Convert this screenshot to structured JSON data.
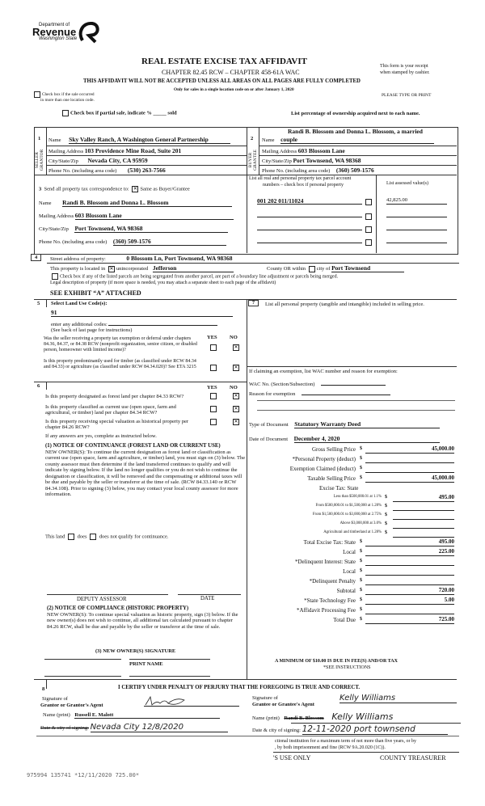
{
  "header": {
    "logo_top": "Department of",
    "logo_main": "Revenue",
    "logo_sub": "Washington State",
    "title": "REAL ESTATE EXCISE TAX AFFIDAVIT",
    "chapter": "CHAPTER 82.45 RCW – CHAPTER 458-61A WAC",
    "warning": "THIS AFFIDAVIT WILL NOT BE ACCEPTED UNLESS ALL AREAS ON ALL PAGES ARE FULLY COMPLETED",
    "only_for": "Only for sales in a single location code on or after January 1, 2020",
    "receipt_note_1": "This form is your receipt",
    "receipt_note_2": "when stamped by cashier.",
    "multi_location_1": "Check box if the sale occurred",
    "multi_location_2": "in more than one location code.",
    "type_print": "PLEASE TYPE OR PRINT",
    "partial_sale": "Check box if partial sale, indicate % _____ sold",
    "ownership_note": "List percentage of ownership acquired next to each name."
  },
  "seller": {
    "num": "1",
    "side_label": "SELLER GRANTOR",
    "name_label": "Name",
    "name": "Sky Valley Ranch, A Washington General Partnership",
    "mail_label": "Mailing Address",
    "mail": "103 Providence Mine Road, Suite 201",
    "city_label": "City/State/Zip",
    "city": "Nevada City, CA 95959",
    "phone_label": "Phone No. (including area code)",
    "phone": "(530) 263-7566"
  },
  "buyer": {
    "num": "2",
    "side_label": "BUYER GRANTEE",
    "name_label": "Name",
    "name_1": "Randi B. Blossom and Donna L. Blossom, a married",
    "name_2": "couple",
    "mail_label": "Mailing Address",
    "mail": "603 Blossom Lane",
    "city_label": "City/State/Zip",
    "city": "Port Townsend, WA 98368",
    "phone_label": "Phone No. (including area code)",
    "phone": "(360) 509-1576"
  },
  "correspondence": {
    "num": "3",
    "label": "Send all property tax correspondence to:",
    "same_label": "Same as Buyer/Grantee",
    "same_checked": true,
    "name_label": "Name",
    "name": "Randi B. Blossom and Donna L. Blossom",
    "mail_label": "Mailing Address",
    "mail": "603 Blossom Lane",
    "city_label": "City/State/Zip",
    "city": "Port Townsend, WA 98368",
    "phone_label": "Phone No. (including area code)",
    "phone": "(360) 509-1576"
  },
  "parcels": {
    "header_1": "List all real and personal property tax parcel account",
    "header_2": "numbers – check box if personal property",
    "assessed_header": "List assessed value(s)",
    "rows": [
      {
        "parcel": "001 202 011/11024",
        "assessed": "42,825.00"
      },
      {
        "parcel": "",
        "assessed": ""
      },
      {
        "parcel": "",
        "assessed": ""
      },
      {
        "parcel": "",
        "assessed": ""
      }
    ]
  },
  "property": {
    "num": "4",
    "street_label": "Street address of property:",
    "street": "0 Blossom Ln, Port Townsend, WA  98368",
    "located_label": "This property is located in",
    "unincorporated_label": "unincorporated",
    "unincorporated_checked": true,
    "county": "Jefferson",
    "county_label": "County OR  within",
    "city_label": "city of",
    "city": "Port Townsend",
    "segregated": "Check box if any of the listed parcels are being segregated from another parcel, are part of a boundary line adjustment or parcels being merged.",
    "legal_label": "Legal description of property (if more space is needed, you may attach a separate sheet to each page of the affidavit)",
    "legal": "SEE EXHIBIT “A” ATTACHED"
  },
  "land_use": {
    "num": "5",
    "label": "Select Land Use Code(s):",
    "code": "91",
    "additional": "enter any additional codes:",
    "see_back": "(See back of last page for instructions)",
    "yes": "YES",
    "no": "NO",
    "q1": "Was the seller receiving a property tax exemption or deferral under chapters 84.36, 84.37, or 84.38 RCW (nonprofit organization, senior citizen, or disabled person, homeowner with limited income)?",
    "q2": "Is this property predominantly used for timber (as classified under RCW 84.34 and 84.33) or agriculture (as classified under RCW 84.34.020)? See ETA 3215"
  },
  "section6": {
    "num": "6",
    "yes": "YES",
    "no": "NO",
    "q1": "Is this property designated as forest land per chapter 84.33 RCW?",
    "q2": "Is this property classified as current use (open space, farm and agricultural, or timber) land per chapter 84.34 RCW?",
    "q3": "Is this property receiving special valuation as historical property per chapter 84.26 RCW?",
    "if_yes": "If any answers are yes, complete as instructed below.",
    "notice1_title": "(1) NOTICE OF CONTINUANCE (FOREST LAND OR CURRENT USE)",
    "notice1_body": "NEW OWNER(S): To continue the current designation as forest land or classification as current use (open space, farm and agriculture, or timber) land, you must sign on (3) below.  The county assessor must then determine if the land transferred continues to qualify and will indicate by signing below.  If the land no longer qualifies or you do not wish to continue the designation or classification, it will be removed and the compensating or additional taxes will be due and payable by the seller or transferor at the time of sale.  (RCW 84.33.140 or RCW 84.34.108). Prior to signing (3) below, you may contact your local county assessor for more information.",
    "this_land": "This land",
    "does": "does",
    "does_not": "does not qualify for continuance.",
    "deputy": "DEPUTY ASSESSOR",
    "date": "DATE",
    "notice2_title": "(2) NOTICE OF COMPLIANCE (HISTORIC PROPERTY)",
    "notice2_body": "NEW OWNER(S):  To continue special valuation as historic property, sign (3) below.  If the new owner(s) does not wish to continue, all additional tax calculated pursuant to chapter 84.26 RCW, shall be due and payable by the seller or transferor at the time of sale.",
    "new_owner_sig": "(3)  NEW OWNER(S) SIGNATURE",
    "print_name": "PRINT NAME"
  },
  "section7": {
    "num": "7",
    "label": "List all personal property (tangible and intangible) included in selling price.",
    "exemption_label": "If claiming an exemption, list WAC number and reason for exemption:",
    "wac_label": "WAC No. (Section/Subsection)",
    "reason_label": "Reason for exemption",
    "doc_type_label": "Type of Document",
    "doc_type": "Statutory Warranty Deed",
    "doc_date_label": "Date of Document",
    "doc_date": "December 4, 2020"
  },
  "tax_rows": [
    {
      "label": "Gross Selling Price",
      "value": "45,000.00"
    },
    {
      "label": "*Personal Property (deduct)",
      "value": ""
    },
    {
      "label": "Exemption Claimed (deduct)",
      "value": ""
    },
    {
      "label": "Taxable Selling Price",
      "value": "45,000.00"
    },
    {
      "label": "Excise Tax:  State",
      "value": null
    },
    {
      "label": "Less than $500,000.01 at 1.1%",
      "value": "495.00",
      "small": true
    },
    {
      "label": "From $500,000.01 to $1,500,000 at 1.28%",
      "value": "",
      "small": true
    },
    {
      "label": "From $1,500,000.01 to $3,000,000 at 2.75%",
      "value": "",
      "small": true
    },
    {
      "label": "Above $3,000,000 at 3.0%",
      "value": "",
      "small": true
    },
    {
      "label": "Agricultural and timberland at 1.28%",
      "value": "",
      "small": true
    },
    {
      "label": "Total Excise Tax: State",
      "value": "495.00"
    },
    {
      "label": "Local",
      "value": "225.00"
    },
    {
      "label": "*Delinquent Interest: State",
      "value": ""
    },
    {
      "label": "Local",
      "value": ""
    },
    {
      "label": "*Delinquent Penalty",
      "value": ""
    },
    {
      "label": "Subtotal",
      "value": "720.00"
    },
    {
      "label": "*State Technology Fee",
      "value": "5.00"
    },
    {
      "label": "*Affidavit Processing Fee",
      "value": ""
    },
    {
      "label": "Total Due",
      "value": "725.00"
    }
  ],
  "tax_currency": "$",
  "minimum_note": "A MINIMUM OF $10.00 IS DUE IN FEE(S) AND/OR TAX",
  "see_instructions": "*SEE INSTRUCTIONS",
  "certify": {
    "num": "8",
    "text": "I CERTIFY UNDER PENALTY OF PERJURY THAT THE FOREGOING IS TRUE AND CORRECT.",
    "grantor_sig_label_1": "Signature of",
    "grantor_sig_label_2": "Grantor or Grantor's Agent",
    "grantor_name_label": "Name (print)",
    "grantor_name": "Russell E. Malott",
    "grantor_date_label": "Date & city of signing:",
    "grantor_date": "Nevada City   12/8/2020",
    "grantee_sig_label_1": "Signature of",
    "grantee_sig_label_2": "Grantee or Grantee's Agent",
    "grantee_sig": "Kelly Williams",
    "grantee_name_label": "Name (print)",
    "grantee_name": "Randi B. Blossom",
    "grantee_name_hand": "Kelly Williams",
    "grantee_date_label": "Date & city of signing:",
    "grantee_date": "12-11-2020  port townsend"
  },
  "footer": {
    "perjury_1": "ctional institution for a maximum term of not more than five years, or by",
    "perjury_2": ", by both imprisonment and fine (RCW 9A.20.020 (1C)).",
    "use_only": "'S USE ONLY",
    "treasurer": "COUNTY TREASURER",
    "stamp": "975994 135741 *12/11/2020 725.00*"
  }
}
